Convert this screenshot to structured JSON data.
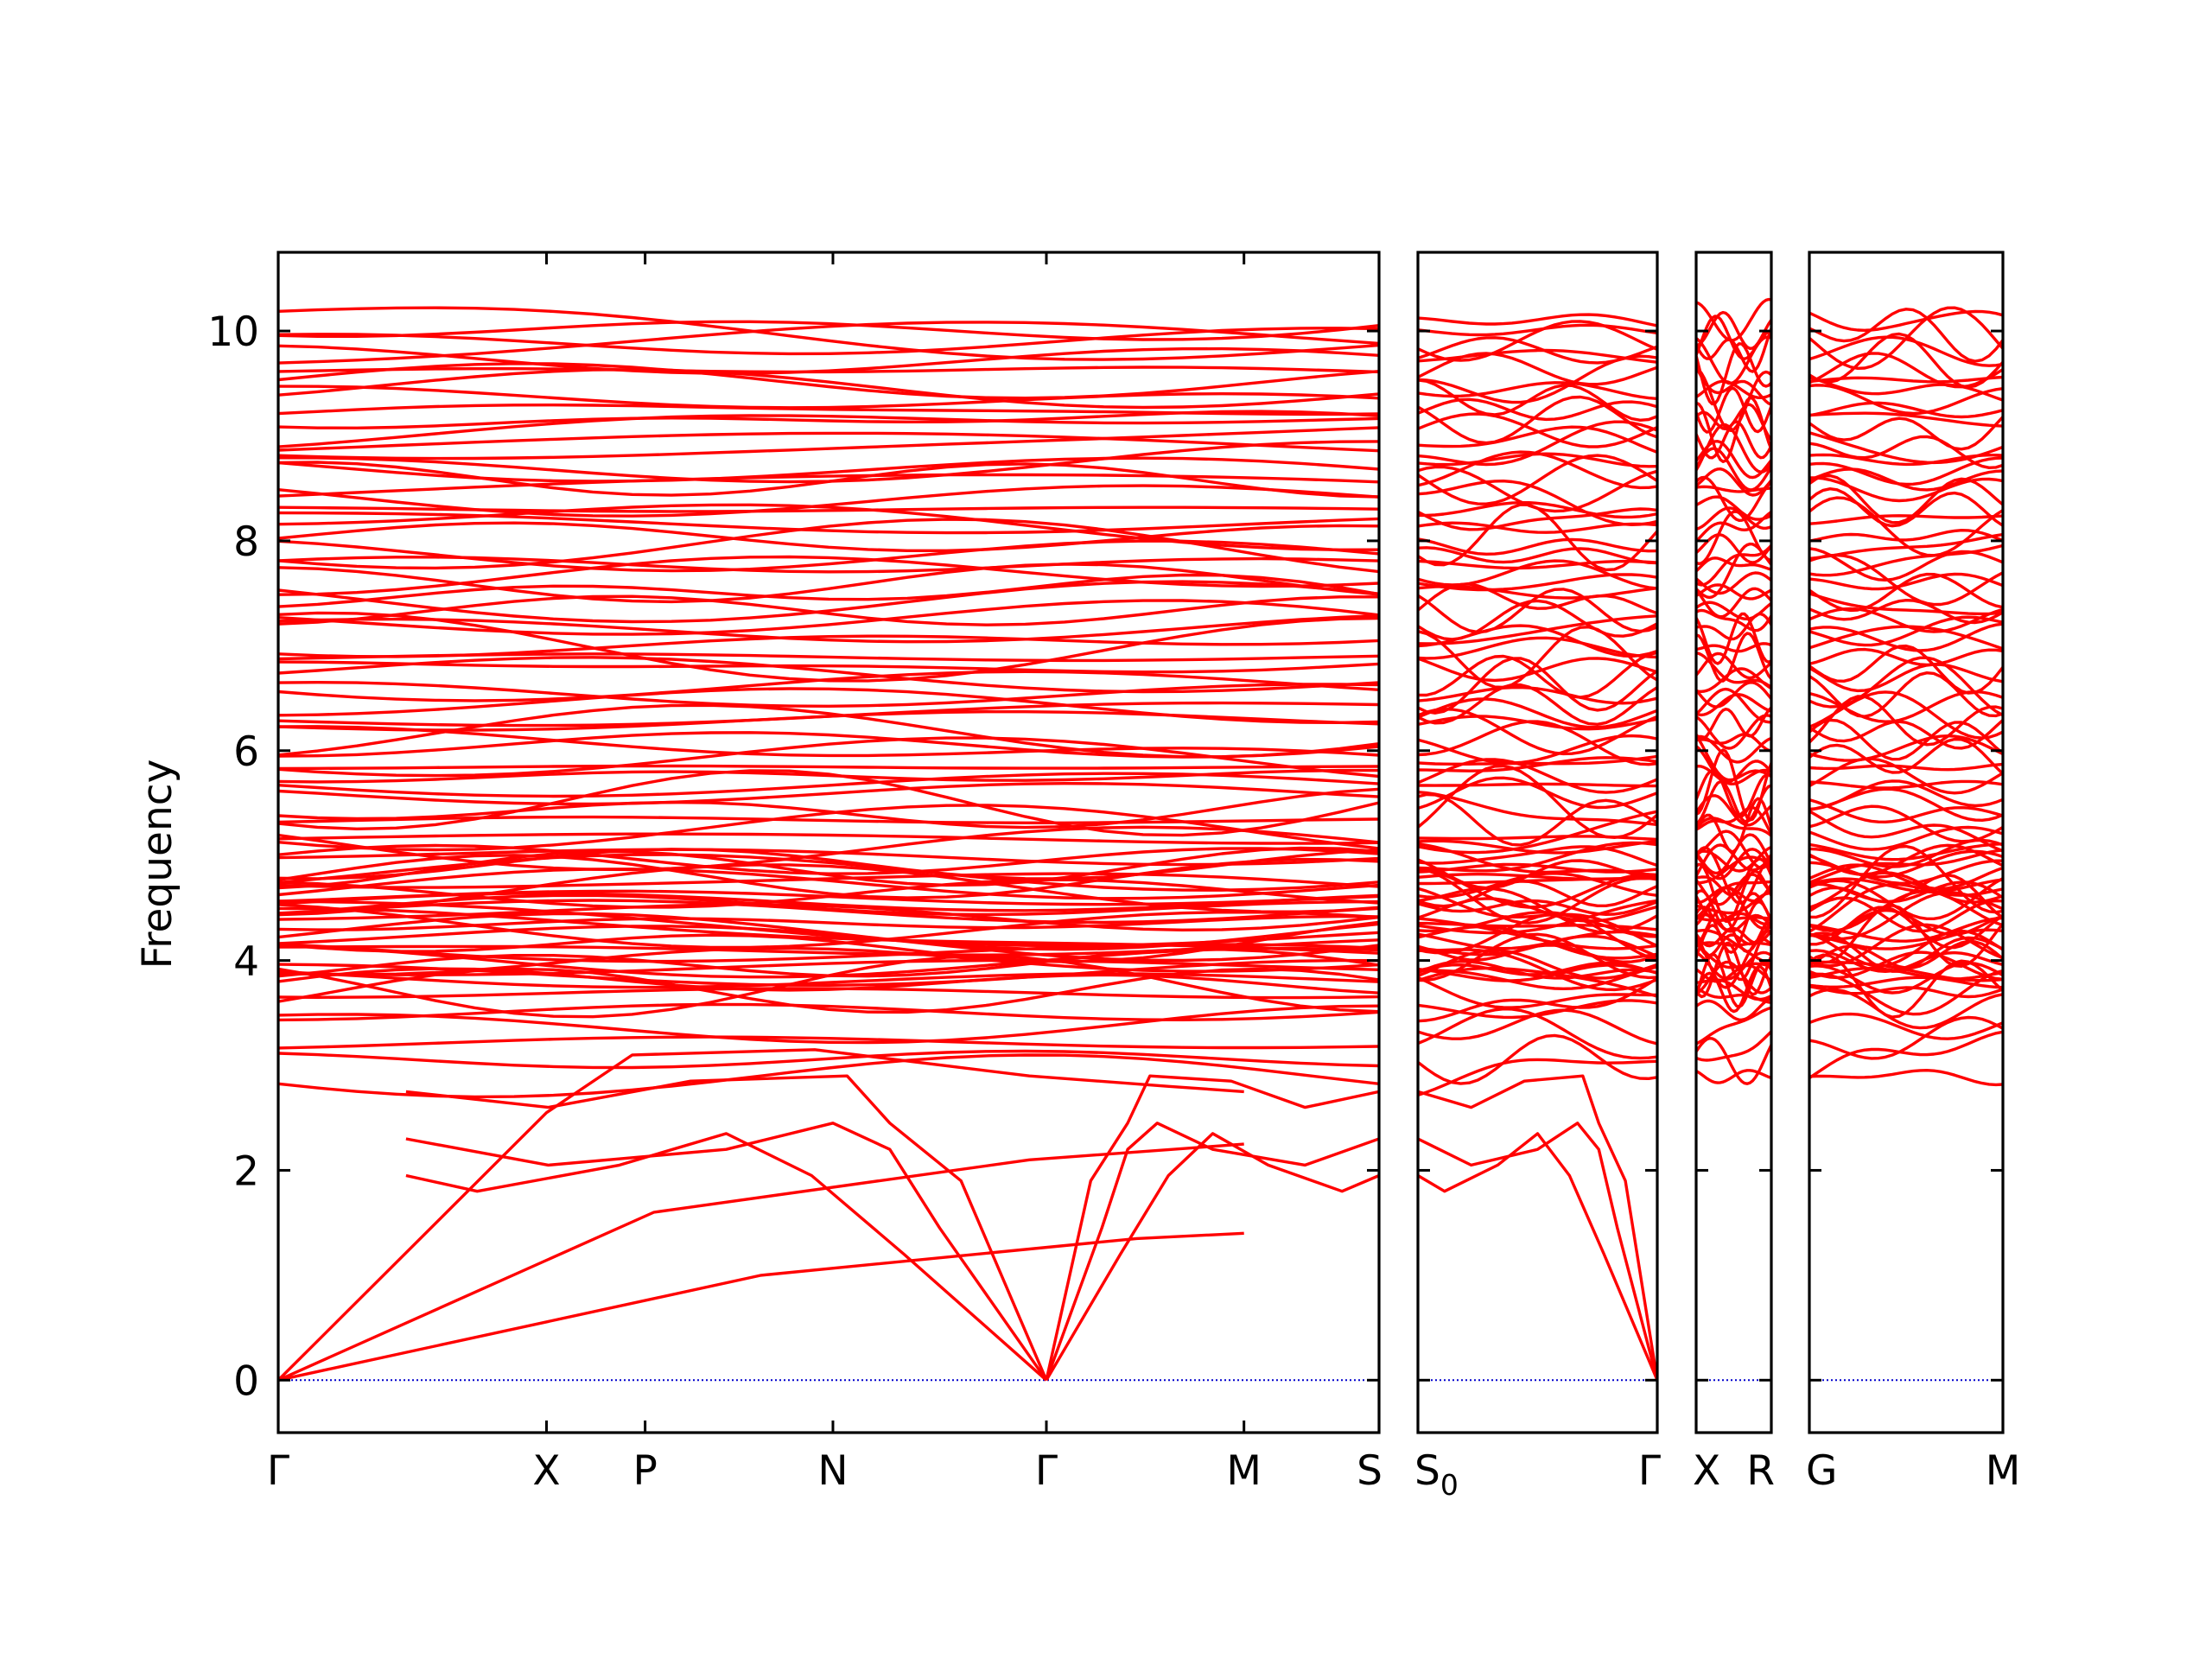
{
  "chart_data": {
    "type": "line",
    "title": "",
    "ylabel": "Frequency",
    "xlabel": "",
    "ylim": [
      -0.5,
      10.75
    ],
    "yticks": [
      0,
      2,
      4,
      6,
      8,
      10
    ],
    "grid": false,
    "legend": "none",
    "colors": {
      "bands": "#ff0000",
      "zero_line": "#0000cc",
      "axes": "#000000"
    },
    "band_count": 96,
    "panels": [
      {
        "labels": [
          "Γ",
          "X",
          "P",
          "N",
          "Γ",
          "M",
          "S"
        ],
        "acoustic": [
          [
            [
              0,
              0
            ],
            [
              0.25,
              2.55
            ],
            [
              0.33,
              3.1
            ],
            [
              0.5,
              3.15
            ],
            [
              0.7,
              2.9
            ],
            [
              0.83,
              2.8
            ],
            [
              0.9,
              2.75
            ]
          ],
          [
            [
              0,
              0
            ],
            [
              0.35,
              1.6
            ],
            [
              0.7,
              2.1
            ],
            [
              0.9,
              2.25
            ]
          ],
          [
            [
              0,
              0
            ],
            [
              0.45,
              1.0
            ],
            [
              0.8,
              1.35
            ],
            [
              0.9,
              1.4
            ]
          ]
        ]
      },
      {
        "labels": [
          "S0",
          "Γ"
        ]
      },
      {
        "labels": [
          "X",
          "R"
        ]
      },
      {
        "labels": [
          "G",
          "M"
        ]
      }
    ],
    "acoustic_branches": [
      [
        [
          0,
          0
        ],
        [
          0.12,
          1.9
        ],
        [
          0.22,
          2.45
        ],
        [
          0.28,
          2.9
        ],
        [
          0.5,
          2.85
        ],
        [
          0.7,
          2.6
        ],
        [
          0.9,
          2.75
        ]
      ],
      [
        [
          0,
          0
        ],
        [
          0.15,
          1.45
        ],
        [
          0.22,
          2.2
        ],
        [
          0.3,
          2.45
        ],
        [
          0.45,
          2.2
        ],
        [
          0.7,
          2.05
        ],
        [
          0.9,
          2.3
        ]
      ],
      [
        [
          0,
          0
        ],
        [
          0.2,
          1.2
        ],
        [
          0.33,
          1.95
        ],
        [
          0.45,
          2.35
        ],
        [
          0.6,
          2.05
        ],
        [
          0.8,
          1.8
        ],
        [
          0.9,
          1.95
        ]
      ]
    ]
  }
}
